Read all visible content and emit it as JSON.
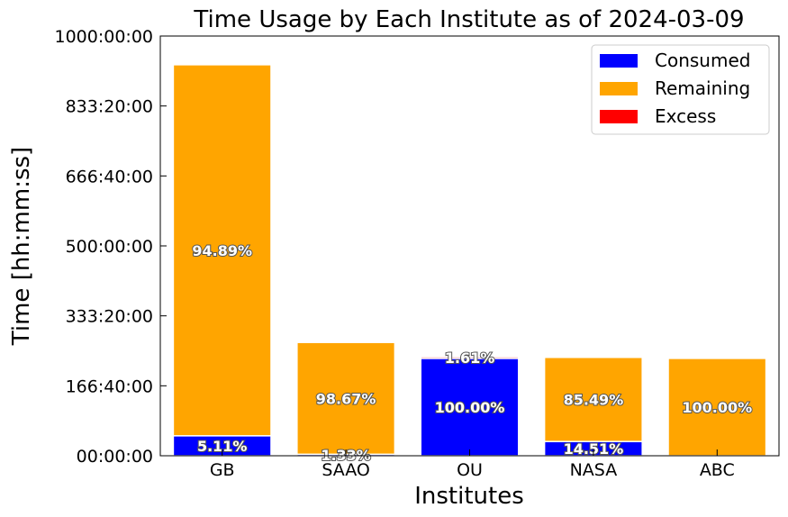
{
  "chart_data": {
    "type": "bar",
    "stacked": true,
    "title": "Time Usage by Each Institute as of 2024-03-09",
    "xlabel": "Institutes",
    "ylabel": "Time [hh:mm:ss]",
    "categories": [
      "GB",
      "SAAO",
      "OU",
      "NASA",
      "ABC"
    ],
    "ylim_hours": [
      0,
      1000
    ],
    "y_ticks_hours": [
      0,
      166.6667,
      333.3333,
      500,
      666.6667,
      833.3333,
      1000
    ],
    "y_tick_labels": [
      "00:00:00",
      "166:40:00",
      "333:20:00",
      "500:00:00",
      "666:40:00",
      "833:20:00",
      "1000:00:00"
    ],
    "series": [
      {
        "name": "Consumed",
        "color": "#0000ff",
        "values_hours": [
          47.6,
          3.6,
          232,
          34.0,
          0
        ],
        "labels": [
          "5.11%",
          "1.33%",
          "100.00%",
          "14.51%",
          ""
        ]
      },
      {
        "name": "Remaining",
        "color": "#ffa500",
        "values_hours": [
          884.0,
          266.4,
          0,
          200.4,
          232
        ],
        "labels": [
          "94.89%",
          "98.67%",
          "",
          "85.49%",
          "100.00%"
        ]
      },
      {
        "name": "Excess",
        "color": "#ff0000",
        "values_hours": [
          0,
          0,
          3.7,
          0,
          0
        ],
        "labels": [
          "",
          "",
          "1.61%",
          "",
          ""
        ]
      }
    ],
    "legend_position": "top-right",
    "grid": false
  }
}
